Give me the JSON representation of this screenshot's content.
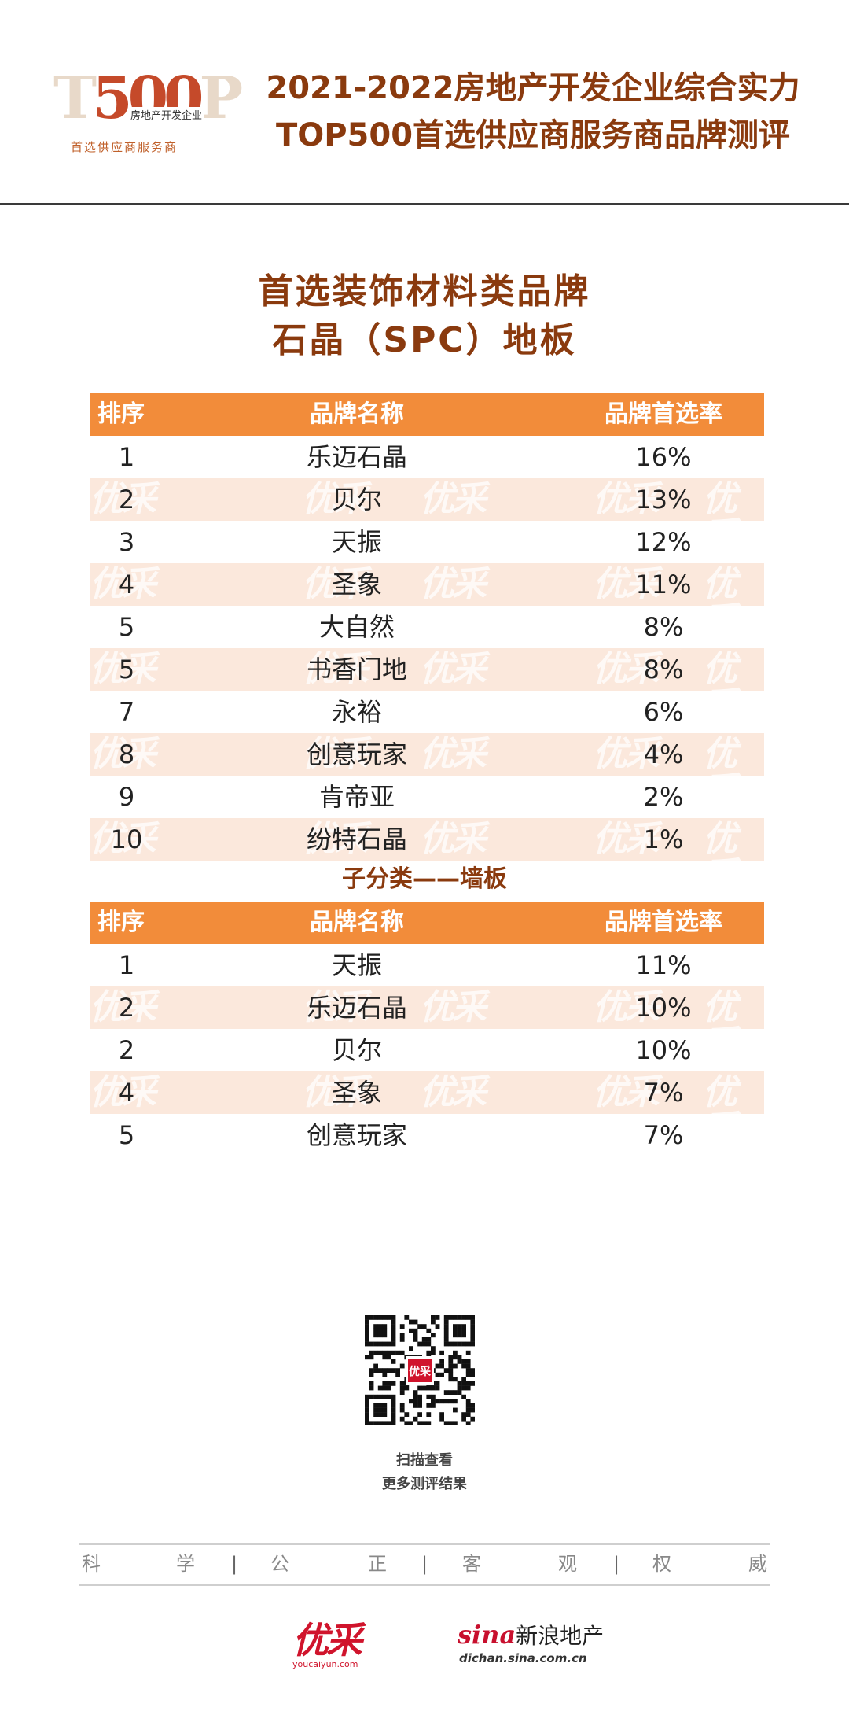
{
  "header": {
    "logo_number": "500",
    "logo_letter_t": "T",
    "logo_letter_p": "P",
    "logo_small_text": "房地产开发企业",
    "logo_subtitle": "首选供应商服务商",
    "title_line1": "2021-2022房地产开发企业综合实力",
    "title_line2": "TOP500首选供应商服务商品牌测评"
  },
  "section": {
    "title_line1": "首选装饰材料类品牌",
    "title_line2": "石晶（SPC）地板"
  },
  "table_main": {
    "headers": [
      "排序",
      "品牌名称",
      "品牌首选率"
    ],
    "rows": [
      {
        "rank": "1",
        "brand": "乐迈石晶",
        "rate": "16%"
      },
      {
        "rank": "2",
        "brand": "贝尔",
        "rate": "13%"
      },
      {
        "rank": "3",
        "brand": "天振",
        "rate": "12%"
      },
      {
        "rank": "4",
        "brand": "圣象",
        "rate": "11%"
      },
      {
        "rank": "5",
        "brand": "大自然",
        "rate": "8%"
      },
      {
        "rank": "5",
        "brand": "书香门地",
        "rate": "8%"
      },
      {
        "rank": "7",
        "brand": "永裕",
        "rate": "6%"
      },
      {
        "rank": "8",
        "brand": "创意玩家",
        "rate": "4%"
      },
      {
        "rank": "9",
        "brand": "肯帝亚",
        "rate": "2%"
      },
      {
        "rank": "10",
        "brand": "纷特石晶",
        "rate": "1%"
      }
    ]
  },
  "subcategory": {
    "title": "子分类——墙板"
  },
  "table_sub": {
    "headers": [
      "排序",
      "品牌名称",
      "品牌首选率"
    ],
    "rows": [
      {
        "rank": "1",
        "brand": "天振",
        "rate": "11%"
      },
      {
        "rank": "2",
        "brand": "乐迈石晶",
        "rate": "10%"
      },
      {
        "rank": "2",
        "brand": "贝尔",
        "rate": "10%"
      },
      {
        "rank": "4",
        "brand": "圣象",
        "rate": "7%"
      },
      {
        "rank": "5",
        "brand": "创意玩家",
        "rate": "7%"
      }
    ]
  },
  "watermark_text": "优采",
  "qr": {
    "center_label": "优采",
    "caption_line1": "扫描查看",
    "caption_line2": "更多测评结果"
  },
  "motto": {
    "chars": [
      "科",
      "学",
      "公",
      "正",
      "客",
      "观",
      "权",
      "威"
    ],
    "separator": "|"
  },
  "footer": {
    "youcai_logo": "优采",
    "youcai_url": "youcaiyun.com",
    "sina_logo": "sina",
    "sina_cn": "新浪地产",
    "sina_url": "dichan.sina.com.cn"
  },
  "colors": {
    "header_orange": "#f28c3a",
    "row_alt": "#fbe8dc",
    "title_brown": "#8a3a0e",
    "brand_red": "#d0142c"
  }
}
